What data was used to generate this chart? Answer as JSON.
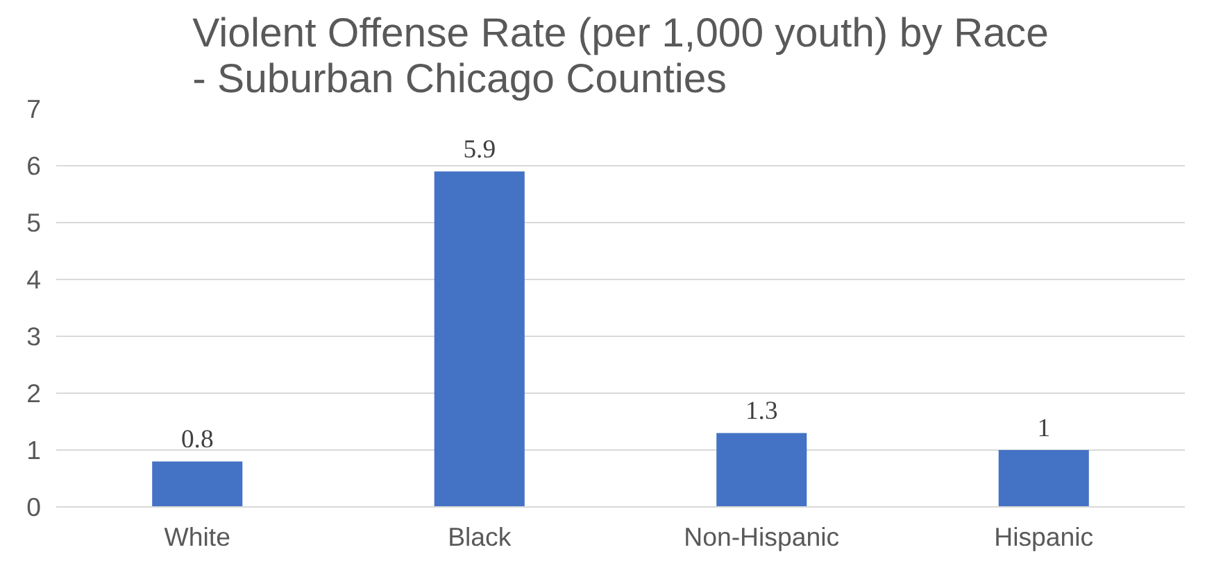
{
  "chart_data": {
    "type": "bar",
    "title": "Violent Offense Rate (per 1,000 youth) by Race\n- Suburban Chicago Counties",
    "categories": [
      "White",
      "Black",
      "Non-Hispanic",
      "Hispanic"
    ],
    "values": [
      0.8,
      5.9,
      1.3,
      1
    ],
    "color": "#4472c4",
    "ylim": [
      0,
      7
    ],
    "yticks": [
      0,
      1,
      2,
      3,
      4,
      5,
      6,
      7
    ],
    "grid": "y",
    "data_labels": true
  }
}
